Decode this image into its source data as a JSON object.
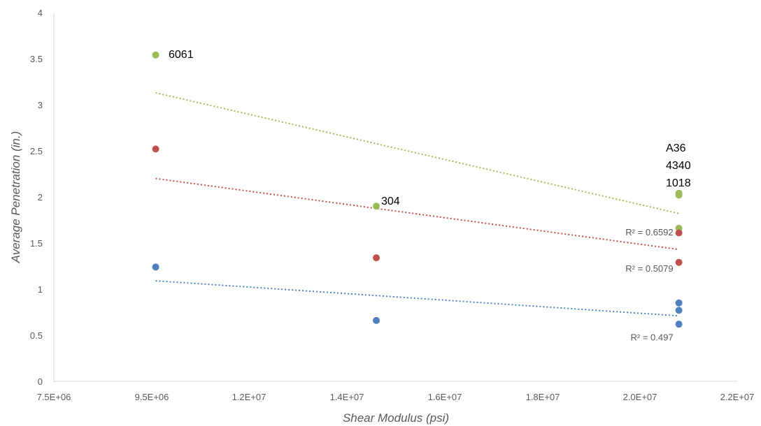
{
  "chart_data": {
    "type": "scatter",
    "xlabel": "Shear Modulus (psi)",
    "ylabel": "Average Penetration (in.)",
    "xlim": [
      7500000,
      22000000
    ],
    "ylim": [
      0,
      4
    ],
    "x_ticks": [
      7500000,
      9500000,
      12000000,
      14000000,
      16000000,
      18000000,
      20000000,
      22000000
    ],
    "x_tick_labels": [
      "7.5E+06",
      "9.5E+06",
      "1.2E+07",
      "1.4E+07",
      "1.6E+07",
      "1.8E+07",
      "2.0E+07",
      "2.2E+07"
    ],
    "y_ticks": [
      0,
      0.5,
      1,
      1.5,
      2,
      2.5,
      3,
      3.5,
      4
    ],
    "y_tick_labels": [
      "0",
      "0.5",
      "1",
      "1.5",
      "2",
      "2.5",
      "3",
      "3.5",
      "4"
    ],
    "grid": false,
    "series": [
      {
        "color": "#9BBB59",
        "points": [
          [
            9600000,
            3.54
          ],
          [
            14600000,
            1.9
          ],
          [
            20800000,
            2.04
          ],
          [
            20800000,
            2.02
          ],
          [
            20800000,
            1.66
          ]
        ],
        "trendline": {
          "x": [
            9600000,
            20800000
          ],
          "y": [
            3.13,
            1.82
          ],
          "r2_label": "R² = 0.6592"
        }
      },
      {
        "color": "#C0504D",
        "points": [
          [
            9600000,
            2.52
          ],
          [
            14600000,
            1.34
          ],
          [
            20800000,
            1.61
          ],
          [
            20800000,
            1.29
          ]
        ],
        "trendline": {
          "x": [
            9600000,
            20800000
          ],
          "y": [
            2.2,
            1.43
          ],
          "r2_label": "R² = 0.5079"
        }
      },
      {
        "color": "#4F81BD",
        "points": [
          [
            9600000,
            1.24
          ],
          [
            14600000,
            0.66
          ],
          [
            20800000,
            0.85
          ],
          [
            20800000,
            0.77
          ],
          [
            20800000,
            0.62
          ]
        ],
        "trendline": {
          "x": [
            9600000,
            20800000
          ],
          "y": [
            1.09,
            0.71
          ],
          "r2_label": "R² = 0.497"
        }
      }
    ],
    "annotations": [
      "6061",
      "304",
      "A36",
      "4340",
      "1018"
    ]
  }
}
